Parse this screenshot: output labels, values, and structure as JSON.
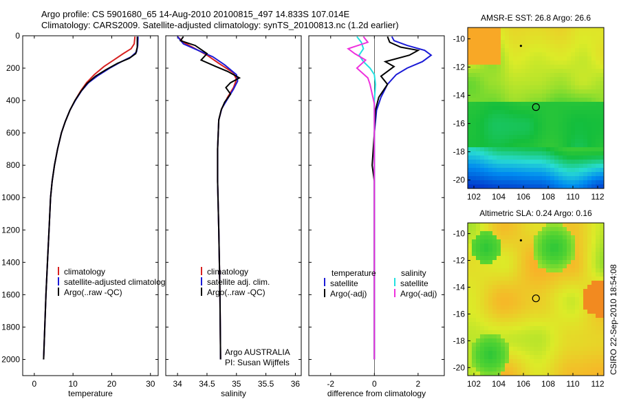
{
  "header": {
    "line1": "Argo profile: CS 5901680_65 14-Aug-2010 20100815_497 14.833S 107.014E",
    "line2": "Climatology: CARS2009. Satellite-adjusted climatology: synTS_20100813.nc (1.2d earlier)"
  },
  "credit": "CSIRO 22-Sep-2010 18:54:08",
  "colors": {
    "climatology": "#d62020",
    "satellite": "#1a1ad6",
    "argo": "#000000",
    "sal_satellite": "#20e0e0",
    "sal_argo": "#ee30dd"
  },
  "chart_data": [
    {
      "type": "line",
      "id": "temperature",
      "xlabel": "temperature",
      "xlim": [
        -3,
        32
      ],
      "ylim": [
        2100,
        0
      ],
      "xticks": [
        0,
        10,
        20,
        30
      ],
      "yticks": [
        0,
        200,
        400,
        600,
        800,
        1000,
        1200,
        1400,
        1600,
        1800,
        2000
      ],
      "legend": [
        "climatology",
        "satellite-adjusted climatology",
        "Argo(..raw -QC)"
      ],
      "series": [
        {
          "name": "climatology",
          "color_key": "climatology",
          "points": [
            [
              26.0,
              5
            ],
            [
              25.8,
              50
            ],
            [
              25.0,
              80
            ],
            [
              23.0,
              110
            ],
            [
              20.5,
              150
            ],
            [
              18.0,
              190
            ],
            [
              15.5,
              240
            ],
            [
              13.5,
              290
            ],
            [
              12.0,
              340
            ],
            [
              10.5,
              400
            ],
            [
              9.2,
              460
            ],
            [
              8.0,
              530
            ],
            [
              7.0,
              600
            ],
            [
              6.0,
              700
            ],
            [
              5.2,
              800
            ],
            [
              4.6,
              900
            ],
            [
              4.2,
              1000
            ],
            [
              3.8,
              1200
            ],
            [
              3.4,
              1400
            ],
            [
              3.0,
              1600
            ],
            [
              2.7,
              1800
            ],
            [
              2.4,
              2000
            ]
          ]
        },
        {
          "name": "satellite-adjusted climatology",
          "color_key": "satellite",
          "points": [
            [
              26.8,
              5
            ],
            [
              26.7,
              60
            ],
            [
              26.4,
              100
            ],
            [
              25.0,
              130
            ],
            [
              22.5,
              160
            ],
            [
              19.5,
              200
            ],
            [
              16.5,
              245
            ],
            [
              14.0,
              290
            ],
            [
              12.2,
              340
            ],
            [
              10.6,
              400
            ],
            [
              9.2,
              460
            ],
            [
              8.0,
              530
            ],
            [
              7.0,
              600
            ],
            [
              6.0,
              700
            ],
            [
              5.2,
              800
            ],
            [
              4.6,
              900
            ],
            [
              4.2,
              1000
            ],
            [
              3.8,
              1200
            ],
            [
              3.4,
              1400
            ],
            [
              3.0,
              1600
            ],
            [
              2.7,
              1800
            ],
            [
              2.4,
              2000
            ]
          ]
        },
        {
          "name": "Argo(..raw -QC)",
          "color_key": "argo",
          "points": [
            [
              26.6,
              5
            ],
            [
              26.6,
              70
            ],
            [
              26.2,
              110
            ],
            [
              24.5,
              140
            ],
            [
              21.5,
              170
            ],
            [
              18.5,
              210
            ],
            [
              15.8,
              250
            ],
            [
              13.6,
              295
            ],
            [
              12.0,
              345
            ],
            [
              10.5,
              400
            ],
            [
              9.2,
              460
            ],
            [
              8.0,
              530
            ],
            [
              7.0,
              600
            ],
            [
              6.0,
              700
            ],
            [
              5.2,
              800
            ],
            [
              4.6,
              900
            ],
            [
              4.2,
              1000
            ],
            [
              3.8,
              1200
            ],
            [
              3.4,
              1400
            ],
            [
              3.0,
              1600
            ],
            [
              2.7,
              1800
            ],
            [
              2.4,
              2000
            ]
          ]
        }
      ]
    },
    {
      "type": "line",
      "id": "salinity",
      "xlabel": "salinity",
      "xlim": [
        33.8,
        36.1
      ],
      "ylim": [
        2100,
        0
      ],
      "xticks": [
        34,
        34.5,
        35,
        35.5,
        36
      ],
      "legend": [
        "climatology",
        "satellite adj. clim.",
        "Argo(..raw -QC)"
      ],
      "annotation": [
        "Argo AUSTRALIA",
        "PI: Susan Wijffels"
      ],
      "series": [
        {
          "name": "climatology",
          "color_key": "climatology",
          "points": [
            [
              34.0,
              5
            ],
            [
              34.1,
              40
            ],
            [
              34.3,
              80
            ],
            [
              34.5,
              120
            ],
            [
              34.7,
              170
            ],
            [
              34.95,
              230
            ],
            [
              35.0,
              270
            ],
            [
              34.95,
              320
            ],
            [
              34.85,
              380
            ],
            [
              34.75,
              450
            ],
            [
              34.7,
              520
            ],
            [
              34.68,
              700
            ],
            [
              34.68,
              900
            ],
            [
              34.7,
              1200
            ],
            [
              34.72,
              1600
            ],
            [
              34.73,
              2000
            ]
          ]
        },
        {
          "name": "satellite adj. clim.",
          "color_key": "satellite",
          "points": [
            [
              34.0,
              5
            ],
            [
              34.1,
              50
            ],
            [
              34.35,
              90
            ],
            [
              34.6,
              130
            ],
            [
              34.8,
              180
            ],
            [
              35.0,
              240
            ],
            [
              35.02,
              280
            ],
            [
              34.95,
              330
            ],
            [
              34.85,
              390
            ],
            [
              34.75,
              450
            ],
            [
              34.7,
              520
            ],
            [
              34.68,
              700
            ],
            [
              34.68,
              900
            ],
            [
              34.7,
              1200
            ],
            [
              34.72,
              1600
            ],
            [
              34.73,
              2000
            ]
          ]
        },
        {
          "name": "Argo(..raw -QC)",
          "color_key": "argo",
          "points": [
            [
              34.1,
              5
            ],
            [
              34.05,
              30
            ],
            [
              34.3,
              60
            ],
            [
              34.5,
              110
            ],
            [
              34.4,
              150
            ],
            [
              34.65,
              190
            ],
            [
              34.85,
              220
            ],
            [
              35.05,
              260
            ],
            [
              34.9,
              290
            ],
            [
              34.82,
              320
            ],
            [
              34.9,
              360
            ],
            [
              34.8,
              410
            ],
            [
              34.74,
              460
            ],
            [
              34.7,
              520
            ],
            [
              34.68,
              700
            ],
            [
              34.68,
              900
            ],
            [
              34.7,
              1200
            ],
            [
              34.72,
              1600
            ],
            [
              34.73,
              2000
            ]
          ]
        }
      ]
    },
    {
      "type": "line",
      "id": "difference",
      "xlabel": "difference from climatology",
      "xlim": [
        -3,
        3.2
      ],
      "ylim": [
        2100,
        0
      ],
      "xticks": [
        -2,
        0,
        2
      ],
      "legend": [
        "temperature",
        "satellite",
        "Argo(-adj)",
        "salinity",
        "satellite",
        "Argo(-adj)"
      ],
      "series": [
        {
          "name": "temperature satellite",
          "color_key": "satellite",
          "points": [
            [
              0.8,
              5
            ],
            [
              0.9,
              30
            ],
            [
              1.5,
              60
            ],
            [
              2.3,
              90
            ],
            [
              2.6,
              120
            ],
            [
              2.2,
              160
            ],
            [
              1.5,
              200
            ],
            [
              1.0,
              240
            ],
            [
              0.6,
              300
            ],
            [
              0.3,
              380
            ],
            [
              0.1,
              460
            ],
            [
              0.0,
              600
            ],
            [
              0.0,
              2000
            ]
          ]
        },
        {
          "name": "temperature Argo(-adj)",
          "color_key": "argo",
          "points": [
            [
              0.6,
              5
            ],
            [
              0.7,
              40
            ],
            [
              1.2,
              70
            ],
            [
              2.0,
              90
            ],
            [
              1.6,
              120
            ],
            [
              0.5,
              160
            ],
            [
              0.9,
              190
            ],
            [
              0.3,
              250
            ],
            [
              0.6,
              300
            ],
            [
              0.2,
              380
            ],
            [
              0.05,
              460
            ],
            [
              0.0,
              600
            ],
            [
              -0.1,
              800
            ],
            [
              0.0,
              900
            ],
            [
              0.0,
              2000
            ]
          ]
        },
        {
          "name": "salinity satellite",
          "color_key": "sal_satellite",
          "points": [
            [
              -0.8,
              5
            ],
            [
              -0.6,
              40
            ],
            [
              -0.5,
              80
            ],
            [
              -0.7,
              120
            ],
            [
              -0.5,
              160
            ],
            [
              -0.2,
              200
            ],
            [
              0.0,
              240
            ],
            [
              0.05,
              300
            ],
            [
              0.0,
              400
            ],
            [
              0.0,
              2000
            ]
          ]
        },
        {
          "name": "salinity Argo(-adj)",
          "color_key": "sal_argo",
          "points": [
            [
              -0.5,
              5
            ],
            [
              -0.3,
              40
            ],
            [
              -1.2,
              80
            ],
            [
              -0.9,
              110
            ],
            [
              -0.4,
              150
            ],
            [
              -0.8,
              200
            ],
            [
              -0.3,
              260
            ],
            [
              -0.2,
              300
            ],
            [
              -0.1,
              360
            ],
            [
              0.0,
              420
            ],
            [
              0.0,
              2000
            ]
          ]
        }
      ]
    },
    {
      "type": "heatmap",
      "id": "sst",
      "title": "AMSR-E SST: 26.8 Argo: 26.6",
      "xlim": [
        101.5,
        112.5
      ],
      "ylim": [
        -20.6,
        -9.2
      ],
      "xticks": [
        102,
        104,
        106,
        108,
        110,
        112
      ],
      "yticks": [
        -10,
        -12,
        -14,
        -16,
        -18,
        -20
      ],
      "float_position": [
        107.014,
        -14.833
      ],
      "track_position": [
        105.8,
        -10.5
      ]
    },
    {
      "type": "heatmap",
      "id": "sla",
      "title": "Altimetric SLA: 0.24 Argo: 0.16",
      "xlim": [
        101.5,
        112.5
      ],
      "ylim": [
        -20.6,
        -9.2
      ],
      "xticks": [
        102,
        104,
        106,
        108,
        110,
        112
      ],
      "yticks": [
        -10,
        -12,
        -14,
        -16,
        -18,
        -20
      ],
      "float_position": [
        107.014,
        -14.833
      ],
      "track_position": [
        105.8,
        -10.5
      ]
    }
  ]
}
